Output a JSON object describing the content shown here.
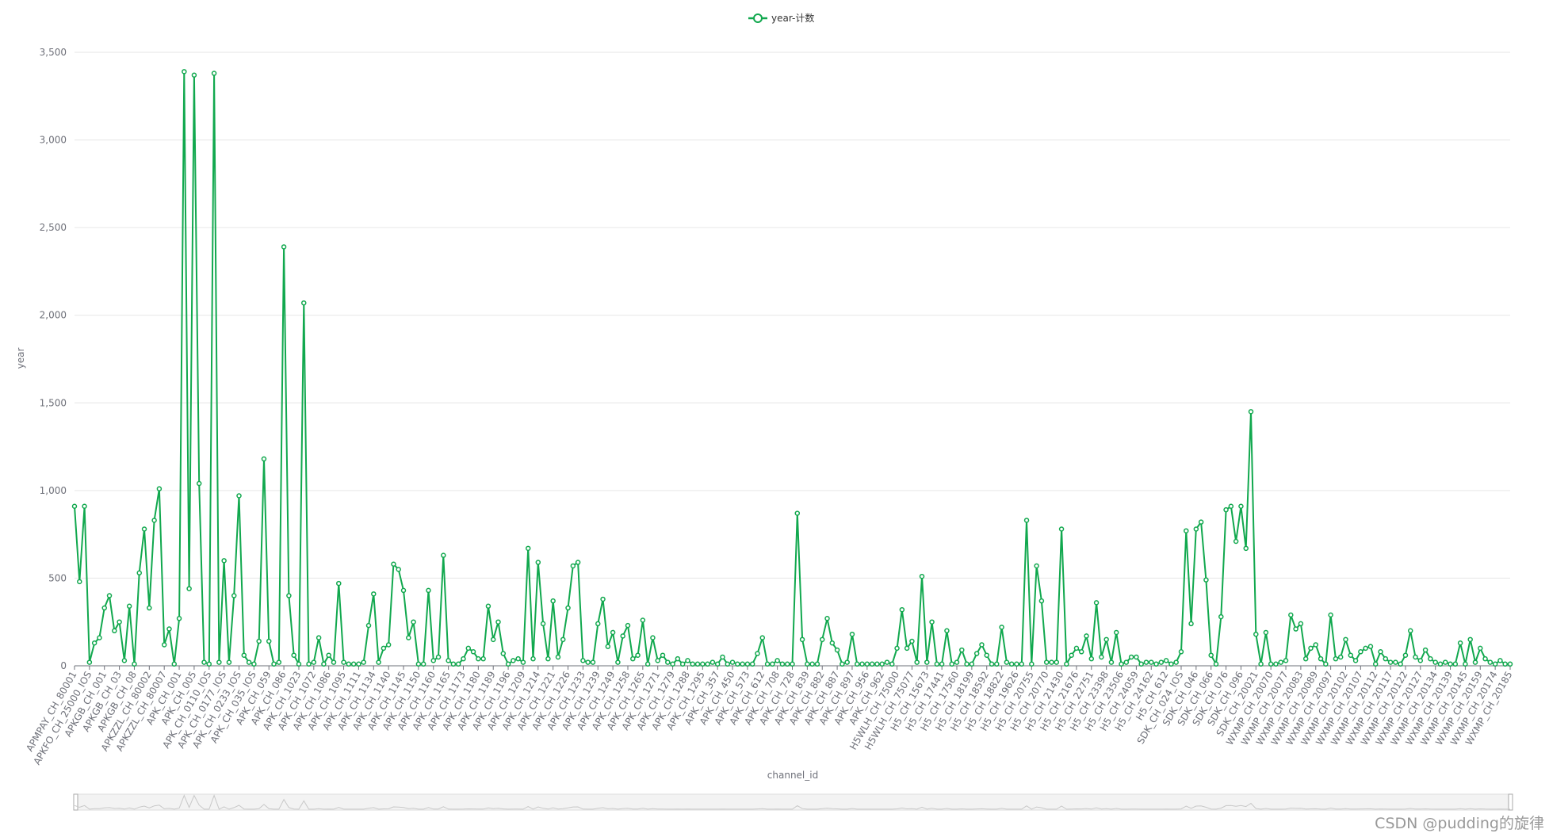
{
  "chart_data": {
    "type": "line",
    "legend": "year-计数",
    "y_axis_label": "year",
    "x_axis_label": "channel_id",
    "watermark": "CSDN @pudding的旋律",
    "color": "#11a84e",
    "grid": true,
    "legend_position": "top",
    "ylim": [
      0,
      3500
    ],
    "yticks": [
      0,
      500,
      {
        "value": 1000,
        "label": "1,000"
      },
      {
        "value": 1500,
        "label": "1,500"
      },
      {
        "value": 2000,
        "label": "2,000"
      },
      {
        "value": 2500,
        "label": "2,500"
      },
      {
        "value": 3000,
        "label": "3,000"
      },
      {
        "value": 3500,
        "label": "3,500"
      }
    ],
    "categories": [
      "APMPAY_CH_80001",
      null,
      null,
      "APKFO_CH_25000_IOS",
      null,
      null,
      "APKGB_CH_001",
      null,
      null,
      "APKGB_CH_03",
      null,
      null,
      "APKGB_CH_08",
      null,
      null,
      "APKZZL_CH_80002",
      null,
      null,
      "APKZZL_CH_80007",
      null,
      null,
      "APK_CH_001",
      null,
      null,
      "APK_CH_005",
      null,
      null,
      "APK_CH_0110_IOS",
      null,
      null,
      "APK_CH_0177_IOS",
      null,
      null,
      "APK_CH_0233_IOS",
      null,
      null,
      "APK_CH_035_IOS",
      null,
      null,
      "APK_CH_059",
      null,
      null,
      "APK_CH_086",
      null,
      null,
      "APK_CH_1023",
      null,
      null,
      "APK_CH_1072",
      null,
      null,
      "APK_CH_1086",
      null,
      null,
      "APK_CH_1095",
      null,
      null,
      "APK_CH_1111",
      null,
      null,
      "APK_CH_1134",
      null,
      null,
      "APK_CH_1140",
      null,
      null,
      "APK_CH_1145",
      null,
      null,
      "APK_CH_1150",
      null,
      null,
      "APK_CH_1160",
      null,
      null,
      "APK_CH_1165",
      null,
      null,
      "APK_CH_1173",
      null,
      null,
      "APK_CH_1180",
      null,
      null,
      "APK_CH_1189",
      null,
      null,
      "APK_CH_1196",
      null,
      null,
      "APK_CH_1209",
      null,
      null,
      "APK_CH_1214",
      null,
      null,
      "APK_CH_1221",
      null,
      null,
      "APK_CH_1226",
      null,
      null,
      "APK_CH_1233",
      null,
      null,
      "APK_CH_1239",
      null,
      null,
      "APK_CH_1249",
      null,
      null,
      "APK_CH_1258",
      null,
      null,
      "APK_CH_1265",
      null,
      null,
      "APK_CH_1271",
      null,
      null,
      "APK_CH_1279",
      null,
      null,
      "APK_CH_1288",
      null,
      null,
      "APK_CH_1295",
      null,
      null,
      "APK_CH_357",
      null,
      null,
      "APK_CH_450",
      null,
      null,
      "APK_CH_573",
      null,
      null,
      "APK_CH_612",
      null,
      null,
      "APK_CH_708",
      null,
      null,
      "APK_CH_728",
      null,
      null,
      "APK_CH_839",
      null,
      null,
      "APK_CH_882",
      null,
      null,
      "APK_CH_887",
      null,
      null,
      "APK_CH_897",
      null,
      null,
      "APK_CH_956",
      null,
      null,
      "APK_CH_962",
      null,
      null,
      "H5WLH_CH_75000",
      null,
      null,
      "H5WLH_CH_75077",
      null,
      null,
      "H5_CH_15673",
      null,
      null,
      "H5_CH_17441",
      null,
      null,
      "H5_CH_17560",
      null,
      null,
      "H5_CH_18199",
      null,
      null,
      "H5_CH_18592",
      null,
      null,
      "H5_CH_18822",
      null,
      null,
      "H5_CH_19626",
      null,
      null,
      "H5_CH_20755",
      null,
      null,
      "H5_CH_20770",
      null,
      null,
      "H5_CH_21430",
      null,
      null,
      "H5_CH_21676",
      null,
      null,
      "H5_CH_22751",
      null,
      null,
      "H5_CH_23398",
      null,
      null,
      "H5_CH_23506",
      null,
      null,
      "H5_CH_24059",
      null,
      null,
      "H5_CH_24162",
      null,
      null,
      "H5_CH_612",
      null,
      null,
      "SDK_CH_024_IOS",
      null,
      null,
      "SDK_CH_046",
      null,
      null,
      "SDK_CH_066",
      null,
      null,
      "SDK_CH_076",
      null,
      null,
      "SDK_CH_096",
      null,
      null,
      "SDK_CH_20021",
      null,
      null,
      "WXMP_CH_20070",
      null,
      null,
      "WXMP_CH_20077",
      null,
      null,
      "WXMP_CH_20083",
      null,
      null,
      "WXMP_CH_20089",
      null,
      null,
      "WXMP_CH_20097",
      null,
      null,
      "WXMP_CH_20102",
      null,
      null,
      "WXMP_CH_20107",
      null,
      null,
      "WXMP_CH_20112",
      null,
      null,
      "WXMP_CH_20117",
      null,
      null,
      "WXMP_CH_20122",
      null,
      null,
      "WXMP_CH_20127",
      null,
      null,
      "WXMP_CH_20134",
      null,
      null,
      "WXMP_CH_20139",
      null,
      null,
      "WXMP_CH_20145",
      null,
      null,
      "WXMP_CH_20159",
      null,
      null,
      "WXMP_CH_20174",
      null,
      null,
      "WXMP_CH_20185"
    ],
    "values": [
      910,
      480,
      910,
      20,
      130,
      160,
      330,
      400,
      200,
      250,
      30,
      340,
      10,
      530,
      780,
      330,
      830,
      1010,
      120,
      210,
      10,
      270,
      3390,
      440,
      3370,
      1040,
      20,
      10,
      3380,
      20,
      600,
      20,
      400,
      970,
      60,
      20,
      10,
      140,
      1180,
      140,
      10,
      20,
      2390,
      400,
      60,
      10,
      2070,
      10,
      20,
      160,
      10,
      60,
      20,
      470,
      20,
      10,
      10,
      10,
      20,
      230,
      410,
      20,
      100,
      120,
      580,
      550,
      430,
      160,
      250,
      10,
      10,
      430,
      30,
      50,
      630,
      30,
      10,
      10,
      40,
      100,
      80,
      40,
      40,
      340,
      150,
      250,
      70,
      10,
      30,
      40,
      20,
      670,
      40,
      590,
      240,
      40,
      370,
      50,
      150,
      330,
      570,
      590,
      30,
      20,
      20,
      240,
      380,
      110,
      190,
      20,
      170,
      230,
      40,
      60,
      260,
      10,
      160,
      30,
      60,
      20,
      10,
      40,
      10,
      30,
      10,
      10,
      10,
      10,
      20,
      10,
      50,
      10,
      20,
      10,
      10,
      10,
      10,
      70,
      160,
      10,
      10,
      30,
      10,
      10,
      10,
      870,
      150,
      10,
      10,
      10,
      150,
      270,
      130,
      90,
      10,
      20,
      180,
      10,
      10,
      10,
      10,
      10,
      10,
      20,
      10,
      100,
      320,
      100,
      140,
      20,
      510,
      20,
      250,
      10,
      10,
      200,
      10,
      20,
      90,
      10,
      10,
      70,
      120,
      60,
      10,
      10,
      220,
      20,
      10,
      10,
      10,
      830,
      10,
      570,
      370,
      20,
      20,
      20,
      780,
      10,
      60,
      100,
      80,
      170,
      40,
      360,
      50,
      150,
      20,
      190,
      10,
      20,
      50,
      50,
      10,
      20,
      20,
      10,
      20,
      30,
      10,
      20,
      80,
      770,
      240,
      780,
      820,
      490,
      60,
      10,
      280,
      890,
      910,
      710,
      910,
      670,
      1450,
      180,
      10,
      190,
      10,
      10,
      20,
      30,
      290,
      210,
      240,
      40,
      100,
      120,
      40,
      10,
      290,
      40,
      50,
      150,
      60,
      30,
      80,
      100,
      110,
      10,
      80,
      40,
      20,
      20,
      10,
      60,
      200,
      50,
      30,
      90,
      40,
      20,
      10,
      20,
      10,
      10,
      130,
      10,
      150,
      20,
      100,
      40,
      20,
      10,
      30,
      10,
      10
    ]
  }
}
